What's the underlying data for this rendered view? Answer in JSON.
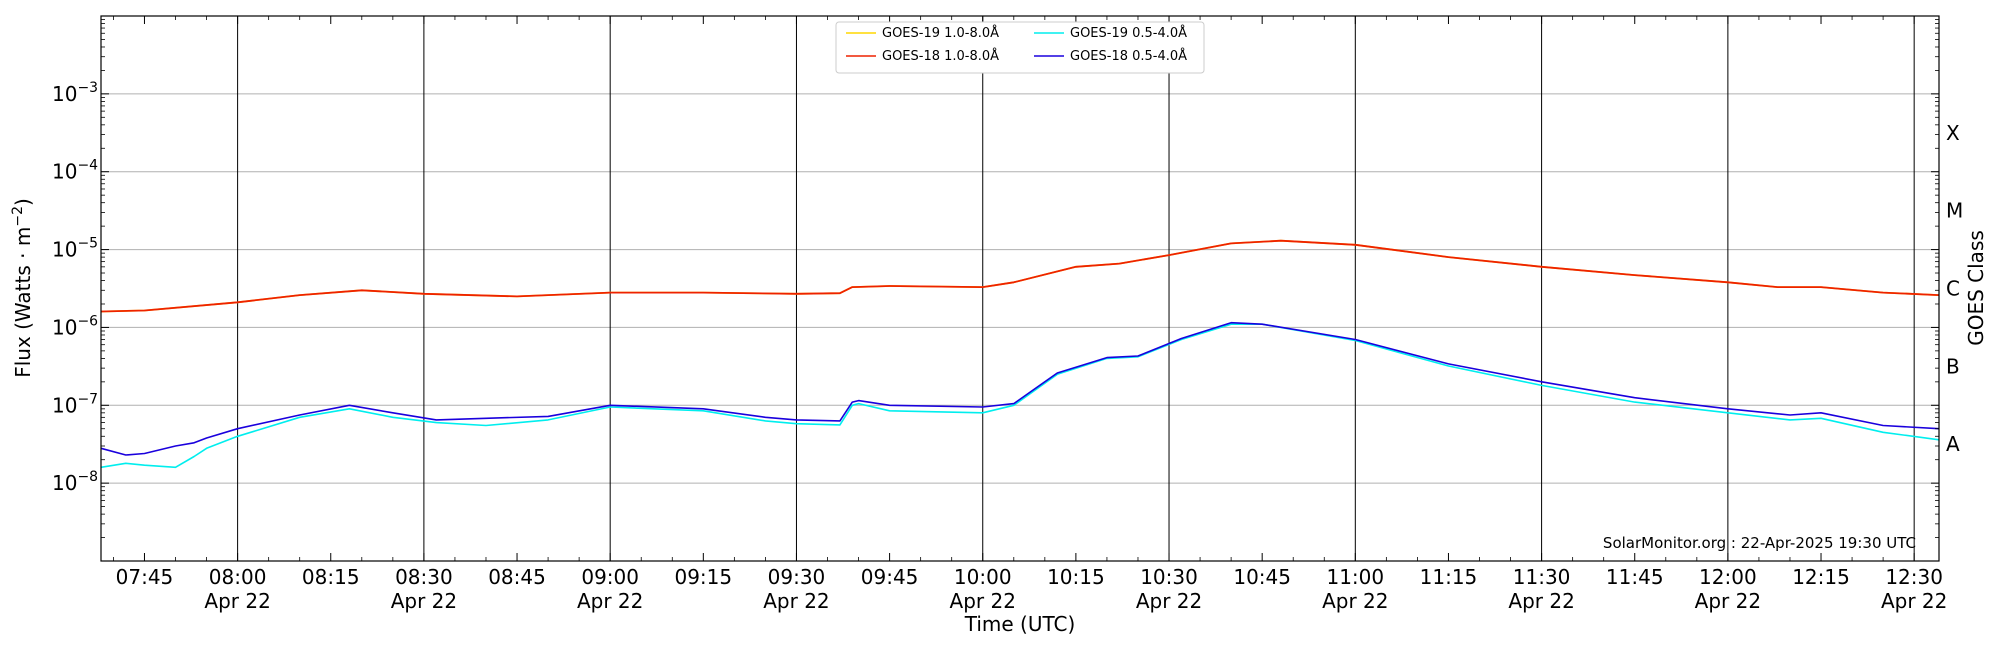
{
  "chart_data": {
    "type": "line",
    "title": "",
    "xlabel": "Time (UTC)",
    "ylabel": "Flux (Watts · m",
    "ylabel_sup": "−2",
    "ylabel_close": ")",
    "right_label": "GOES Class",
    "yscale": "log",
    "ylim": [
      1e-09,
      0.01
    ],
    "xlim": [
      "07:38",
      "12:34"
    ],
    "grid": true,
    "legend_position": "top-center",
    "y_ticks": [
      {
        "mant": "10",
        "exp": "−8",
        "value": 1e-08
      },
      {
        "mant": "10",
        "exp": "−7",
        "value": 1e-07
      },
      {
        "mant": "10",
        "exp": "−6",
        "value": 1e-06
      },
      {
        "mant": "10",
        "exp": "−5",
        "value": 1e-05
      },
      {
        "mant": "10",
        "exp": "−4",
        "value": 0.0001
      },
      {
        "mant": "10",
        "exp": "−3",
        "value": 0.001
      }
    ],
    "class_labels": [
      {
        "label": "A",
        "value": 3.16e-08
      },
      {
        "label": "B",
        "value": 3.16e-07
      },
      {
        "label": "C",
        "value": 3.16e-06
      },
      {
        "label": "M",
        "value": 3.16e-05
      },
      {
        "label": "X",
        "value": 0.000316
      }
    ],
    "x_ticks": [
      {
        "time": "07:45",
        "label": "07:45",
        "date": ""
      },
      {
        "time": "08:00",
        "label": "08:00",
        "date": "Apr 22"
      },
      {
        "time": "08:15",
        "label": "08:15",
        "date": ""
      },
      {
        "time": "08:30",
        "label": "08:30",
        "date": "Apr 22"
      },
      {
        "time": "08:45",
        "label": "08:45",
        "date": ""
      },
      {
        "time": "09:00",
        "label": "09:00",
        "date": "Apr 22"
      },
      {
        "time": "09:15",
        "label": "09:15",
        "date": ""
      },
      {
        "time": "09:30",
        "label": "09:30",
        "date": "Apr 22"
      },
      {
        "time": "09:45",
        "label": "09:45",
        "date": ""
      },
      {
        "time": "10:00",
        "label": "10:00",
        "date": "Apr 22"
      },
      {
        "time": "10:15",
        "label": "10:15",
        "date": ""
      },
      {
        "time": "10:30",
        "label": "10:30",
        "date": "Apr 22"
      },
      {
        "time": "10:45",
        "label": "10:45",
        "date": ""
      },
      {
        "time": "11:00",
        "label": "11:00",
        "date": "Apr 22"
      },
      {
        "time": "11:15",
        "label": "11:15",
        "date": ""
      },
      {
        "time": "11:30",
        "label": "11:30",
        "date": "Apr 22"
      },
      {
        "time": "11:45",
        "label": "11:45",
        "date": ""
      },
      {
        "time": "12:00",
        "label": "12:00",
        "date": "Apr 22"
      },
      {
        "time": "12:15",
        "label": "12:15",
        "date": ""
      },
      {
        "time": "12:30",
        "label": "12:30",
        "date": "Apr 22"
      }
    ],
    "vertical_lines": [
      "08:00",
      "08:30",
      "09:00",
      "09:30",
      "10:00",
      "10:30",
      "11:00",
      "11:30",
      "12:00",
      "12:30"
    ],
    "watermark": "SolarMonitor.org : 22-Apr-2025 19:30 UTC",
    "series": [
      {
        "name": "GOES-19 1.0-8.0Å",
        "color": "#ffd700",
        "x": [
          "07:38",
          "07:45",
          "08:00",
          "08:10",
          "08:20",
          "08:30",
          "08:45",
          "09:00",
          "09:15",
          "09:30",
          "09:37",
          "09:39",
          "09:45",
          "10:00",
          "10:05",
          "10:15",
          "10:22",
          "10:30",
          "10:40",
          "10:48",
          "11:00",
          "11:15",
          "11:30",
          "11:45",
          "12:00",
          "12:08",
          "12:15",
          "12:25",
          "12:34"
        ],
        "y": [
          1.6e-06,
          1.65e-06,
          2.1e-06,
          2.6e-06,
          3e-06,
          2.7e-06,
          2.5e-06,
          2.8e-06,
          2.8e-06,
          2.7e-06,
          2.75e-06,
          3.3e-06,
          3.4e-06,
          3.3e-06,
          3.8e-06,
          6e-06,
          6.6e-06,
          8.5e-06,
          1.2e-05,
          1.3e-05,
          1.15e-05,
          8e-06,
          6e-06,
          4.7e-06,
          3.8e-06,
          3.3e-06,
          3.3e-06,
          2.8e-06,
          2.6e-06
        ]
      },
      {
        "name": "GOES-18 1.0-8.0Å",
        "color": "#ee2200",
        "x": [
          "07:38",
          "07:45",
          "08:00",
          "08:10",
          "08:20",
          "08:30",
          "08:45",
          "09:00",
          "09:15",
          "09:30",
          "09:37",
          "09:39",
          "09:45",
          "10:00",
          "10:05",
          "10:15",
          "10:22",
          "10:30",
          "10:40",
          "10:48",
          "11:00",
          "11:15",
          "11:30",
          "11:45",
          "12:00",
          "12:08",
          "12:15",
          "12:25",
          "12:34"
        ],
        "y": [
          1.6e-06,
          1.65e-06,
          2.1e-06,
          2.6e-06,
          3e-06,
          2.7e-06,
          2.5e-06,
          2.8e-06,
          2.8e-06,
          2.7e-06,
          2.75e-06,
          3.3e-06,
          3.4e-06,
          3.3e-06,
          3.8e-06,
          6e-06,
          6.6e-06,
          8.5e-06,
          1.2e-05,
          1.3e-05,
          1.15e-05,
          8e-06,
          6e-06,
          4.7e-06,
          3.8e-06,
          3.3e-06,
          3.3e-06,
          2.8e-06,
          2.6e-06
        ]
      },
      {
        "name": "GOES-19 0.5-4.0Å",
        "color": "#00eeee",
        "x": [
          "07:38",
          "07:42",
          "07:45",
          "07:50",
          "07:53",
          "07:55",
          "08:00",
          "08:10",
          "08:18",
          "08:25",
          "08:32",
          "08:40",
          "08:50",
          "09:00",
          "09:15",
          "09:25",
          "09:30",
          "09:37",
          "09:39",
          "09:40",
          "09:45",
          "10:00",
          "10:05",
          "10:12",
          "10:20",
          "10:25",
          "10:32",
          "10:40",
          "10:45",
          "11:00",
          "11:15",
          "11:30",
          "11:45",
          "12:00",
          "12:10",
          "12:15",
          "12:25",
          "12:34"
        ],
        "y": [
          1.6e-08,
          1.8e-08,
          1.7e-08,
          1.6e-08,
          2.2e-08,
          2.8e-08,
          4e-08,
          7e-08,
          9e-08,
          7e-08,
          6e-08,
          5.5e-08,
          6.5e-08,
          9.5e-08,
          8.5e-08,
          6.3e-08,
          5.8e-08,
          5.6e-08,
          1e-07,
          1.05e-07,
          8.5e-08,
          8e-08,
          1e-07,
          2.5e-07,
          4e-07,
          4.2e-07,
          7e-07,
          1.1e-06,
          1.1e-06,
          6.8e-07,
          3.2e-07,
          1.8e-07,
          1.1e-07,
          8e-08,
          6.5e-08,
          6.8e-08,
          4.5e-08,
          3.6e-08
        ]
      },
      {
        "name": "GOES-18 0.5-4.0Å",
        "color": "#1a00dd",
        "x": [
          "07:38",
          "07:42",
          "07:45",
          "07:50",
          "07:53",
          "07:55",
          "08:00",
          "08:10",
          "08:18",
          "08:25",
          "08:32",
          "08:40",
          "08:50",
          "09:00",
          "09:15",
          "09:25",
          "09:30",
          "09:37",
          "09:39",
          "09:40",
          "09:45",
          "10:00",
          "10:05",
          "10:12",
          "10:20",
          "10:25",
          "10:32",
          "10:40",
          "10:45",
          "11:00",
          "11:15",
          "11:30",
          "11:45",
          "12:00",
          "12:10",
          "12:15",
          "12:25",
          "12:34"
        ],
        "y": [
          2.8e-08,
          2.3e-08,
          2.4e-08,
          3e-08,
          3.3e-08,
          3.8e-08,
          5e-08,
          7.5e-08,
          1e-07,
          8e-08,
          6.5e-08,
          6.8e-08,
          7.2e-08,
          1e-07,
          9e-08,
          7e-08,
          6.5e-08,
          6.3e-08,
          1.1e-07,
          1.15e-07,
          1e-07,
          9.5e-08,
          1.05e-07,
          2.6e-07,
          4.1e-07,
          4.3e-07,
          7.2e-07,
          1.15e-06,
          1.1e-06,
          7e-07,
          3.4e-07,
          2e-07,
          1.25e-07,
          9e-08,
          7.5e-08,
          8e-08,
          5.5e-08,
          5e-08
        ]
      }
    ],
    "legend_order": [
      0,
      2,
      1,
      3
    ]
  }
}
